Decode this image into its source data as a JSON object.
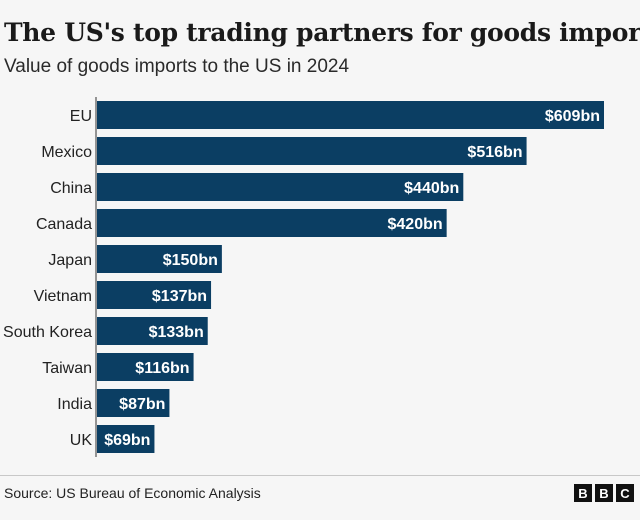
{
  "chart_data": {
    "type": "bar",
    "orientation": "horizontal",
    "title": "The US's top trading partners for goods imports",
    "subtitle": "Value of goods imports to the US in 2024",
    "categories": [
      "EU",
      "Mexico",
      "China",
      "Canada",
      "Japan",
      "Vietnam",
      "South Korea",
      "Taiwan",
      "India",
      "UK"
    ],
    "values": [
      609,
      516,
      440,
      420,
      150,
      137,
      133,
      116,
      87,
      69
    ],
    "value_labels": [
      "$609bn",
      "$516bn",
      "$440bn",
      "$420bn",
      "$150bn",
      "$137bn",
      "$133bn",
      "$116bn",
      "$87bn",
      "$69bn"
    ],
    "unit": "$bn",
    "xlim": [
      0,
      609
    ],
    "grid": false,
    "bar_color": "#0b3e63"
  },
  "footer": {
    "source": "Source: US Bureau of Economic Analysis",
    "logo_letters": [
      "B",
      "B",
      "C"
    ]
  }
}
